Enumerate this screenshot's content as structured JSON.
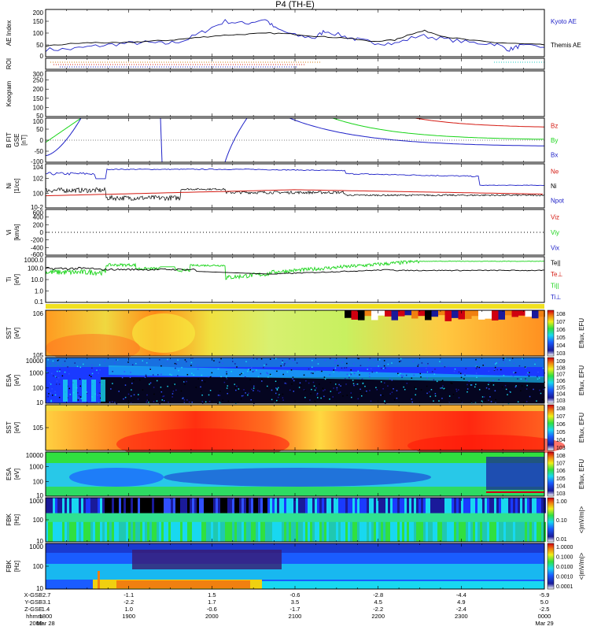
{
  "title": "P4 (TH-E)",
  "colors": {
    "blue": "#1f22c8",
    "red": "#d41a12",
    "green": "#18d418",
    "black": "#000000",
    "orange": "#d07a10",
    "cyan": "#18c8c0"
  },
  "chart_data": [
    {
      "type": "line",
      "panel": "ae",
      "ylabel": "AE Index",
      "ylim": [
        0,
        200
      ],
      "yticks": [
        "0",
        "50",
        "100",
        "150",
        "200"
      ],
      "series": [
        {
          "name": "Kyoto AE",
          "color": "#1f22c8",
          "x": [
            0,
            0.05,
            0.1,
            0.15,
            0.2,
            0.24,
            0.28,
            0.32,
            0.36,
            0.4,
            0.44,
            0.46,
            0.5,
            0.54,
            0.56,
            0.6,
            0.63,
            0.66,
            0.7,
            0.75,
            0.8,
            0.85,
            0.9,
            0.93,
            0.95,
            1.0
          ],
          "values": [
            30,
            32,
            45,
            55,
            60,
            55,
            70,
            110,
            150,
            140,
            160,
            120,
            90,
            80,
            110,
            85,
            70,
            60,
            55,
            90,
            75,
            60,
            55,
            30,
            45,
            40
          ]
        },
        {
          "name": "Themis AE",
          "color": "#000000",
          "x": [
            0,
            0.05,
            0.1,
            0.15,
            0.2,
            0.25,
            0.3,
            0.35,
            0.4,
            0.45,
            0.5,
            0.55,
            0.6,
            0.65,
            0.7,
            0.73,
            0.76,
            0.8,
            0.85,
            0.9,
            0.95,
            1.0
          ],
          "values": [
            45,
            55,
            60,
            58,
            65,
            70,
            80,
            90,
            95,
            100,
            95,
            85,
            80,
            65,
            70,
            95,
            110,
            85,
            70,
            60,
            55,
            50
          ]
        }
      ]
    },
    {
      "type": "line",
      "panel": "roi",
      "ylabel": "ROI"
    },
    {
      "type": "line",
      "panel": "kz",
      "ylabel": "Keogram",
      "yticks": [
        "50",
        "100",
        "150",
        "200",
        "250",
        "300"
      ]
    },
    {
      "type": "line",
      "panel": "bfit",
      "ylabel": "B FIT",
      "unit": "GSE\n[nT]",
      "ylim": [
        -100,
        100
      ],
      "yticks": [
        "-100",
        "-50",
        "0",
        "50",
        "100"
      ],
      "series": [
        {
          "name": "Bz",
          "color": "#d41a12"
        },
        {
          "name": "By",
          "color": "#18d418"
        },
        {
          "name": "Bx",
          "color": "#1f22c8"
        }
      ]
    },
    {
      "type": "line",
      "panel": "ni",
      "ylabel": "Ni",
      "unit": "[1/cc]",
      "yticks": [
        "10-2",
        "100",
        "102",
        "104"
      ],
      "series": [
        {
          "name": "Ne",
          "color": "#d41a12"
        },
        {
          "name": "Ni",
          "color": "#000000"
        },
        {
          "name": "Npot",
          "color": "#1f22c8"
        }
      ]
    },
    {
      "type": "line",
      "panel": "vi",
      "ylabel": "Vi",
      "unit": "[km/s]",
      "ylim": [
        -600,
        600
      ],
      "yticks": [
        "-600",
        "-400",
        "-200",
        "0",
        "200",
        "400",
        "600"
      ],
      "series": [
        {
          "name": "Viz",
          "color": "#d41a12"
        },
        {
          "name": "Viy",
          "color": "#18d418"
        },
        {
          "name": "Vix",
          "color": "#1f22c8"
        }
      ]
    },
    {
      "type": "line",
      "panel": "ti",
      "ylabel": "Ti",
      "unit": "[eV]",
      "yticks": [
        "0.1",
        "1.0",
        "10.0",
        "100.0",
        "1000.0"
      ],
      "series": [
        {
          "name": "Te||",
          "color": "#000000"
        },
        {
          "name": "Te⊥",
          "color": "#d41a12"
        },
        {
          "name": "Ti||",
          "color": "#18d418"
        },
        {
          "name": "Ti⊥",
          "color": "#1f22c8"
        }
      ]
    },
    {
      "type": "heatmap",
      "panel": "sst_e",
      "ylabel": "SST",
      "unit": "[eV]",
      "yticks": [
        "105",
        "106"
      ],
      "zticks": [
        "108",
        "107",
        "106",
        "105",
        "104",
        "103"
      ],
      "zlabel": "Eflux, EFU"
    },
    {
      "type": "heatmap",
      "panel": "esa_e",
      "ylabel": "ESA",
      "unit": "[eV]",
      "yticks": [
        "10",
        "100",
        "1000",
        "10000"
      ],
      "zticks": [
        "109",
        "108",
        "107",
        "106",
        "105",
        "104",
        "103"
      ],
      "zlabel": "Eflux, EFU"
    },
    {
      "type": "heatmap",
      "panel": "sst_i",
      "ylabel": "SST",
      "unit": "[eV]",
      "yticks": [
        "105"
      ],
      "zticks": [
        "108",
        "107",
        "106",
        "105",
        "104",
        "103"
      ],
      "zlabel": "Eflux, EFU"
    },
    {
      "type": "heatmap",
      "panel": "esa_i",
      "ylabel": "ESA",
      "unit": "[eV]",
      "yticks": [
        "10",
        "100",
        "1000",
        "10000"
      ],
      "zticks": [
        "108",
        "107",
        "106",
        "105",
        "104",
        "103"
      ],
      "zlabel": "Eflux, EFU"
    },
    {
      "type": "heatmap",
      "panel": "fbk1",
      "ylabel": "FBK",
      "unit": "[Hz]",
      "yticks": [
        "10",
        "100",
        "1000"
      ],
      "zticks": [
        "1.00",
        "0.10",
        "0.01"
      ],
      "zlabel": "<|mV/m|>"
    },
    {
      "type": "heatmap",
      "panel": "fbk2",
      "ylabel": "FBK",
      "unit": "[Hz]",
      "yticks": [
        "10",
        "100",
        "1000"
      ],
      "zticks": [
        "1.0000",
        "0.1000",
        "0.0100",
        "0.0010",
        "0.0001"
      ],
      "zlabel": "<|mV/m|>"
    }
  ],
  "xaxis": {
    "row_labels": [
      "X-GSE",
      "Y-GSE",
      "Z-GSE",
      "hhmm",
      "2009"
    ],
    "columns": [
      [
        "-2.7",
        "-3.1",
        "1.4",
        "1800",
        "Mar 28"
      ],
      [
        "-1.1",
        "-2.2",
        "1.0",
        "1900",
        ""
      ],
      [
        "1.5",
        "1.7",
        "-0.6",
        "2000",
        ""
      ],
      [
        "-0.6",
        "3.5",
        "-1.7",
        "2100",
        ""
      ],
      [
        "-2.8",
        "4.5",
        "-2.2",
        "2200",
        ""
      ],
      [
        "-4.4",
        "4.9",
        "-2.4",
        "2300",
        ""
      ],
      [
        "-5.9",
        "5.0",
        "-2.5",
        "0000",
        "Mar 29"
      ]
    ]
  }
}
